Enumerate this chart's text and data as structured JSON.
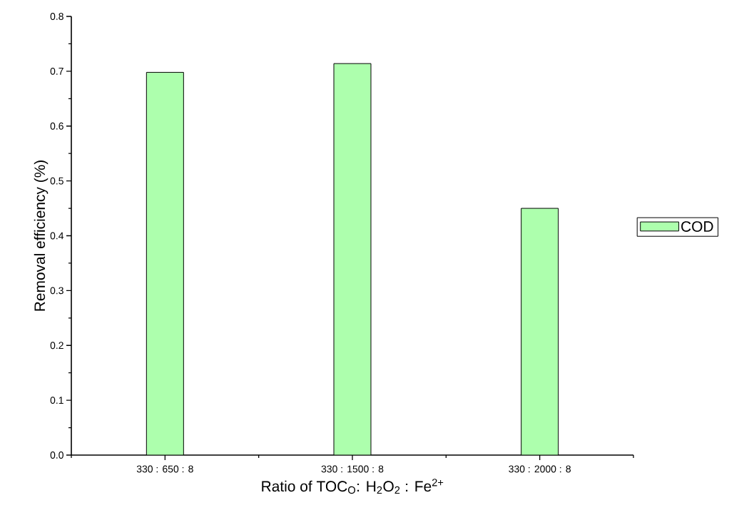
{
  "chart_data": {
    "type": "bar",
    "xlabel": "Ratio of TOC$_{O}$: H$_{2}$O$_{2}$ : Fe$^{2+}$",
    "ylabel": "Removal efficiency (%)",
    "categories": [
      "330 : 650 : 8",
      "330 : 1500 : 8",
      "330 : 2000 : 8"
    ],
    "series": [
      {
        "name": "COD",
        "color": "#adffad",
        "values": [
          0.698,
          0.714,
          0.45
        ]
      }
    ],
    "ylim": [
      0,
      0.8
    ],
    "yticks": [
      {
        "value": 0,
        "label": "0.0"
      },
      {
        "value": 0.1,
        "label": "0.1"
      },
      {
        "value": 0.2,
        "label": "0.2"
      },
      {
        "value": 0.3,
        "label": "0.3"
      },
      {
        "value": 0.4,
        "label": "0.4"
      },
      {
        "value": 0.5,
        "label": "0.5"
      },
      {
        "value": 0.6,
        "label": "0.6"
      },
      {
        "value": 0.7,
        "label": "0.7"
      },
      {
        "value": 0.8,
        "label": "0.8"
      }
    ],
    "legend": "right"
  }
}
